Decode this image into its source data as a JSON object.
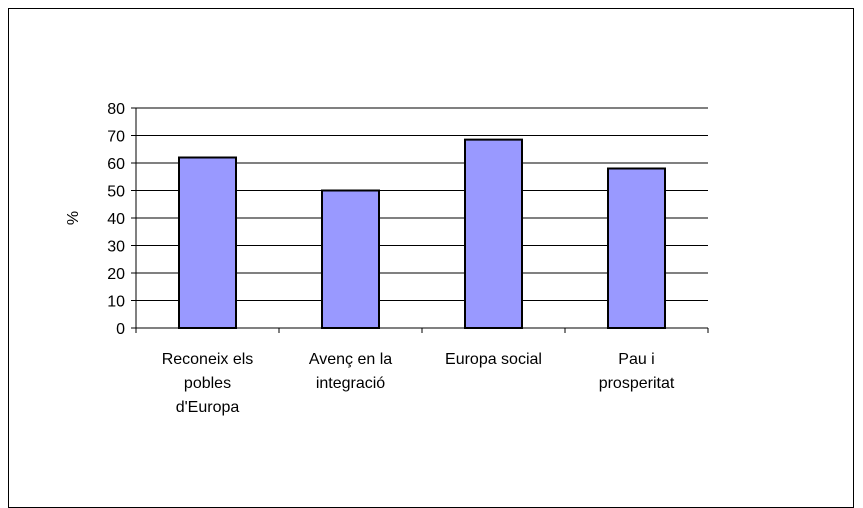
{
  "chart_data": {
    "type": "bar",
    "categories": [
      [
        "Reconeix els",
        "pobles",
        "d'Europa"
      ],
      [
        "Avenç en la",
        "integració"
      ],
      [
        "Europa social"
      ],
      [
        "Pau i",
        "prosperitat"
      ]
    ],
    "values": [
      62,
      50,
      68.5,
      58
    ],
    "title": "",
    "xlabel": "",
    "ylabel": "%",
    "ylim": [
      0,
      80
    ],
    "yticks": [
      0,
      10,
      20,
      30,
      40,
      50,
      60,
      70,
      80
    ],
    "grid": true,
    "legend": "none",
    "colors": {
      "bar_fill": "#9999ff",
      "bar_stroke": "#000000",
      "grid": "#000000",
      "axis": "#000000"
    }
  }
}
